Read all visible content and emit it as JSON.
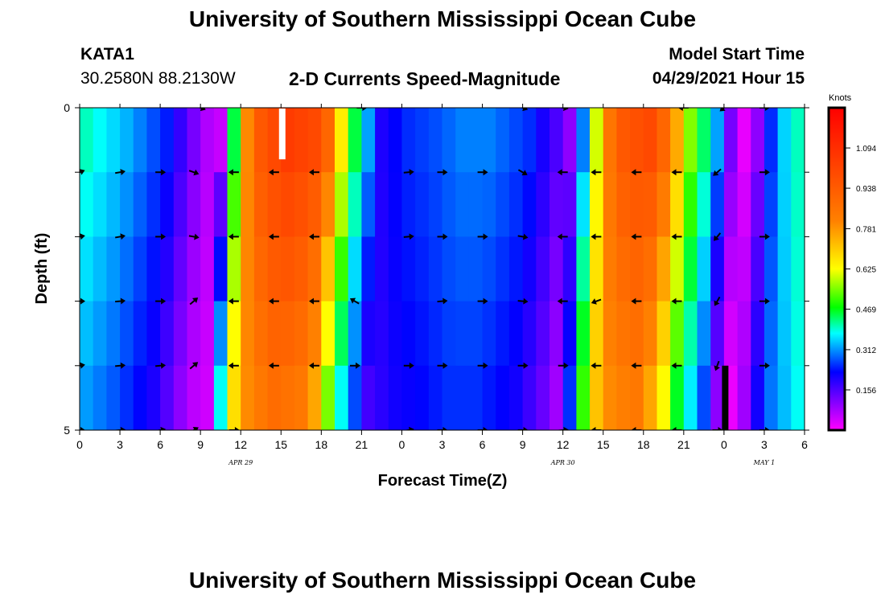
{
  "header": {
    "title": "University of Southern Mississippi Ocean Cube",
    "station": "KATA1",
    "coords": "30.2580N  88.2130W",
    "subtitle": "2-D Currents Speed-Magnitude",
    "model_start_label": "Model Start Time",
    "model_start_value": "04/29/2021 Hour 15"
  },
  "footer": {
    "title": "University of Southern Mississippi Ocean Cube"
  },
  "chart_data": {
    "type": "heatmap",
    "title": "2-D Currents Speed-Magnitude",
    "xlabel": "Forecast Time(Z)",
    "ylabel": "Depth (ft)",
    "x_tick_labels": [
      "0",
      "3",
      "6",
      "9",
      "12",
      "15",
      "18",
      "21",
      "0",
      "3",
      "6",
      "9",
      "12",
      "15",
      "18",
      "21",
      "0",
      "3",
      "6"
    ],
    "x_range_hours": [
      0,
      54
    ],
    "date_labels": [
      {
        "text": "APR 29",
        "hour": 12
      },
      {
        "text": "APR 30",
        "hour": 36
      },
      {
        "text": "MAY 1",
        "hour": 51
      }
    ],
    "y_range": [
      0,
      5
    ],
    "y_tick_labels": [
      "0",
      "",
      "",
      "",
      "",
      "5"
    ],
    "depth_levels": [
      0,
      1,
      2,
      3,
      4,
      5
    ],
    "colorbar": {
      "unit": "Knots",
      "min": 0.0,
      "max": 1.25,
      "tick_values": [
        "1.094",
        "0.938",
        "0.781",
        "0.625",
        "0.469",
        "0.312",
        "0.156"
      ]
    },
    "speed_profile_hours": [
      0,
      3,
      6,
      8,
      9,
      10,
      11,
      12,
      13,
      15,
      17,
      18,
      19,
      20,
      21,
      22,
      24,
      26,
      28,
      30,
      33,
      35,
      36,
      37,
      38,
      39,
      40,
      42,
      43,
      44,
      45,
      47,
      48,
      49,
      50,
      51,
      52,
      54
    ],
    "speed_profile_knots": [
      0.4,
      0.33,
      0.24,
      0.12,
      0.07,
      0.05,
      0.45,
      0.8,
      0.95,
      1.05,
      1.0,
      0.9,
      0.65,
      0.45,
      0.32,
      0.2,
      0.25,
      0.27,
      0.3,
      0.3,
      0.25,
      0.16,
      0.1,
      0.3,
      0.6,
      0.85,
      0.95,
      1.0,
      0.9,
      0.75,
      0.55,
      0.32,
      0.12,
      0.02,
      0.1,
      0.25,
      0.35,
      0.45
    ],
    "arrows": [
      {
        "hour": 0,
        "depths": [
          {
            "d": 1,
            "angle": -20
          },
          {
            "d": 2,
            "angle": -10
          },
          {
            "d": 3,
            "angle": 0
          },
          {
            "d": 4,
            "angle": -10
          },
          {
            "d": 5,
            "angle": 0
          }
        ]
      },
      {
        "hour": 3,
        "depths": [
          {
            "d": 1,
            "angle": -10
          },
          {
            "d": 2,
            "angle": -10
          },
          {
            "d": 3,
            "angle": -5
          },
          {
            "d": 4,
            "angle": -5
          },
          {
            "d": 5,
            "angle": -5
          }
        ]
      },
      {
        "hour": 6,
        "depths": [
          {
            "d": 1,
            "angle": 0
          },
          {
            "d": 2,
            "angle": 0
          },
          {
            "d": 3,
            "angle": 0
          },
          {
            "d": 4,
            "angle": -5
          },
          {
            "d": 5,
            "angle": -10
          }
        ]
      },
      {
        "hour": 8.5,
        "depths": [
          {
            "d": 1,
            "angle": 20
          },
          {
            "d": 2,
            "angle": 10
          },
          {
            "d": 3,
            "angle": -40
          },
          {
            "d": 4,
            "angle": -40
          },
          {
            "d": 5,
            "angle": -30
          }
        ]
      },
      {
        "hour": 11.5,
        "depths": [
          {
            "d": 1,
            "angle": 180
          },
          {
            "d": 2,
            "angle": 180
          },
          {
            "d": 3,
            "angle": 180
          },
          {
            "d": 4,
            "angle": 180
          },
          {
            "d": 5,
            "angle": 0
          }
        ]
      },
      {
        "hour": 14.5,
        "depths": [
          {
            "d": 1,
            "angle": 180
          },
          {
            "d": 2,
            "angle": 180
          },
          {
            "d": 3,
            "angle": 180
          },
          {
            "d": 4,
            "angle": 180
          }
        ]
      },
      {
        "hour": 17.5,
        "depths": [
          {
            "d": 1,
            "angle": 180
          },
          {
            "d": 2,
            "angle": 180
          },
          {
            "d": 3,
            "angle": 180
          },
          {
            "d": 4,
            "angle": 180
          }
        ]
      },
      {
        "hour": 20.5,
        "depths": [
          {
            "d": 3,
            "angle": -150
          },
          {
            "d": 4,
            "angle": 0
          }
        ]
      },
      {
        "hour": 24.5,
        "depths": [
          {
            "d": 1,
            "angle": -5
          },
          {
            "d": 2,
            "angle": -5
          },
          {
            "d": 4,
            "angle": 0
          },
          {
            "d": 5,
            "angle": -10
          }
        ]
      },
      {
        "hour": 27,
        "depths": [
          {
            "d": 1,
            "angle": 0
          },
          {
            "d": 2,
            "angle": 0
          },
          {
            "d": 3,
            "angle": -5
          },
          {
            "d": 4,
            "angle": 0
          },
          {
            "d": 5,
            "angle": 0
          }
        ]
      },
      {
        "hour": 30,
        "depths": [
          {
            "d": 1,
            "angle": 0
          },
          {
            "d": 2,
            "angle": 0
          },
          {
            "d": 3,
            "angle": 0
          },
          {
            "d": 4,
            "angle": 0
          },
          {
            "d": 5,
            "angle": 0
          }
        ]
      },
      {
        "hour": 33,
        "depths": [
          {
            "d": 1,
            "angle": 30
          },
          {
            "d": 2,
            "angle": 10
          },
          {
            "d": 3,
            "angle": 5
          },
          {
            "d": 4,
            "angle": 0
          },
          {
            "d": 5,
            "angle": 0
          }
        ]
      },
      {
        "hour": 36,
        "depths": [
          {
            "d": 1,
            "angle": 180
          },
          {
            "d": 2,
            "angle": 180
          },
          {
            "d": 3,
            "angle": 180
          },
          {
            "d": 4,
            "angle": 0
          },
          {
            "d": 5,
            "angle": -5
          }
        ]
      },
      {
        "hour": 38.5,
        "depths": [
          {
            "d": 1,
            "angle": 180
          },
          {
            "d": 2,
            "angle": 180
          },
          {
            "d": 3,
            "angle": 160
          },
          {
            "d": 4,
            "angle": 180
          },
          {
            "d": 5,
            "angle": 180
          }
        ]
      },
      {
        "hour": 41.5,
        "depths": [
          {
            "d": 1,
            "angle": 180
          },
          {
            "d": 2,
            "angle": 180
          },
          {
            "d": 3,
            "angle": 180
          },
          {
            "d": 4,
            "angle": 180
          },
          {
            "d": 5,
            "angle": 180
          }
        ]
      },
      {
        "hour": 44.5,
        "depths": [
          {
            "d": 1,
            "angle": 180
          },
          {
            "d": 2,
            "angle": 180
          },
          {
            "d": 3,
            "angle": 180
          },
          {
            "d": 4,
            "angle": 180
          },
          {
            "d": 5,
            "angle": 180
          }
        ]
      },
      {
        "hour": 47.5,
        "depths": [
          {
            "d": 1,
            "angle": 140
          },
          {
            "d": 2,
            "angle": 130
          },
          {
            "d": 3,
            "angle": 120
          },
          {
            "d": 4,
            "angle": 110
          },
          {
            "d": 5,
            "angle": 0
          }
        ]
      },
      {
        "hour": 51,
        "depths": [
          {
            "d": 1,
            "angle": 0
          },
          {
            "d": 2,
            "angle": 0
          },
          {
            "d": 3,
            "angle": 0
          },
          {
            "d": 4,
            "angle": 0
          },
          {
            "d": 5,
            "angle": 0
          }
        ]
      }
    ],
    "top_row_arrows": [
      {
        "hour": 9,
        "angle": 20
      },
      {
        "hour": 21,
        "angle": 0
      },
      {
        "hour": 33,
        "angle": 20
      },
      {
        "hour": 36,
        "angle": 10
      },
      {
        "hour": 45,
        "angle": 180
      },
      {
        "hour": 48,
        "angle": 140
      },
      {
        "hour": 51,
        "angle": 0
      }
    ]
  }
}
